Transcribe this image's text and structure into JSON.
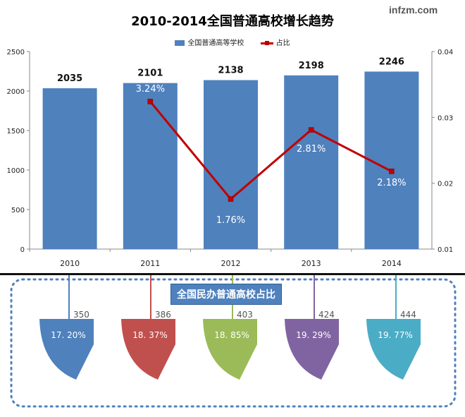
{
  "title": "2010-2014全国普通高校增长趋势",
  "watermark": "infzm.com",
  "legend": {
    "bars_label": "全国普通高等学校",
    "line_label": "占比"
  },
  "chart_data": [
    {
      "type": "bar",
      "title": "2010-2014全国普通高校增长趋势",
      "categories": [
        "2010",
        "2011",
        "2012",
        "2013",
        "2014"
      ],
      "series": [
        {
          "name": "全国普通高等学校",
          "type": "bar",
          "axis": "left",
          "values": [
            2035,
            2101,
            2138,
            2198,
            2246
          ],
          "labels": [
            "2035",
            "2101",
            "2138",
            "2198",
            "2246"
          ]
        },
        {
          "name": "占比",
          "type": "line",
          "axis": "right",
          "values": [
            null,
            0.0324,
            0.0176,
            0.0281,
            0.0218
          ],
          "labels": [
            "",
            "3.24%",
            "1.76%",
            "2.81%",
            "2.18%"
          ]
        }
      ],
      "ylim": [
        0,
        2500
      ],
      "y_ticks": [
        "0",
        "500",
        "1000",
        "1500",
        "2000",
        "2500"
      ],
      "y2lim": [
        0.01,
        0.04
      ],
      "y2_ticks": [
        "0.01",
        "0.02",
        "0.03",
        "0.04"
      ],
      "legend_position": "top",
      "colors": {
        "bar": "#4f81bd",
        "line": "#c00000"
      }
    },
    {
      "type": "pie",
      "title": "全国民办普通高校占比",
      "categories": [
        "2010",
        "2011",
        "2012",
        "2013",
        "2014"
      ],
      "counts": [
        350,
        386,
        403,
        424,
        444
      ],
      "count_labels": [
        "350",
        "386",
        "403",
        "424",
        "444"
      ],
      "percentages": [
        17.2,
        18.37,
        18.85,
        19.29,
        19.77
      ],
      "percent_labels": [
        "17. 20%",
        "18. 37%",
        "18. 85%",
        "19. 29%",
        "19. 77%"
      ],
      "colors": [
        "#4f81bd",
        "#c0504d",
        "#9bbb59",
        "#8064a2",
        "#4bacc6"
      ]
    }
  ]
}
